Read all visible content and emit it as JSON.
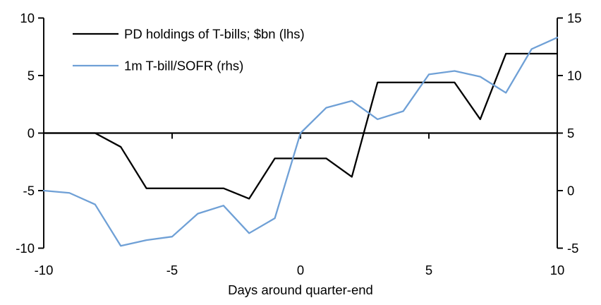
{
  "chart_data": {
    "type": "line",
    "title": "",
    "xlabel": "Days around quarter-end",
    "grid": false,
    "legend_position": "top-left",
    "colors": {
      "lhs_series": "#000000",
      "rhs_series": "#6FA0D6",
      "axis": "#000000",
      "background": "#ffffff"
    },
    "x": [
      -10,
      -9,
      -8,
      -7,
      -6,
      -5,
      -4,
      -3,
      -2,
      -1,
      0,
      1,
      2,
      3,
      4,
      5,
      6,
      7,
      8,
      9,
      10
    ],
    "series": [
      {
        "name": "PD holdings of T-bills; $bn (lhs)",
        "axis": "lhs",
        "color": "#000000",
        "values": [
          0.0,
          0.0,
          0.0,
          -1.2,
          -4.8,
          -4.8,
          -4.8,
          -4.8,
          -5.7,
          -2.2,
          -2.2,
          -2.2,
          -3.8,
          4.4,
          4.4,
          4.4,
          4.4,
          1.2,
          6.9,
          6.9,
          6.9
        ]
      },
      {
        "name": "1m T-bill/SOFR (rhs)",
        "axis": "rhs",
        "color": "#6FA0D6",
        "values": [
          0.0,
          -0.2,
          -1.2,
          -4.8,
          -4.3,
          -4.0,
          -2.0,
          -1.3,
          -3.7,
          -2.4,
          5.0,
          7.2,
          7.8,
          6.2,
          6.9,
          10.1,
          10.4,
          9.9,
          8.5,
          12.3,
          13.3
        ]
      }
    ],
    "axes": {
      "left": {
        "min": -10,
        "max": 10,
        "tick_values": [
          10,
          5,
          0,
          -5,
          -10
        ],
        "tick_labels": [
          "10",
          "5",
          "0",
          "-5",
          "-10"
        ]
      },
      "right": {
        "min": -5,
        "max": 15,
        "tick_values": [
          15,
          10,
          5,
          0,
          -5
        ],
        "tick_labels": [
          "15",
          "10",
          "5",
          "0",
          "-5"
        ]
      },
      "x": {
        "min": -10,
        "max": 10,
        "tick_values": [
          -10,
          -5,
          0,
          5,
          10
        ],
        "tick_labels": [
          "-10",
          "-5",
          "0",
          "5",
          "10"
        ]
      }
    }
  }
}
